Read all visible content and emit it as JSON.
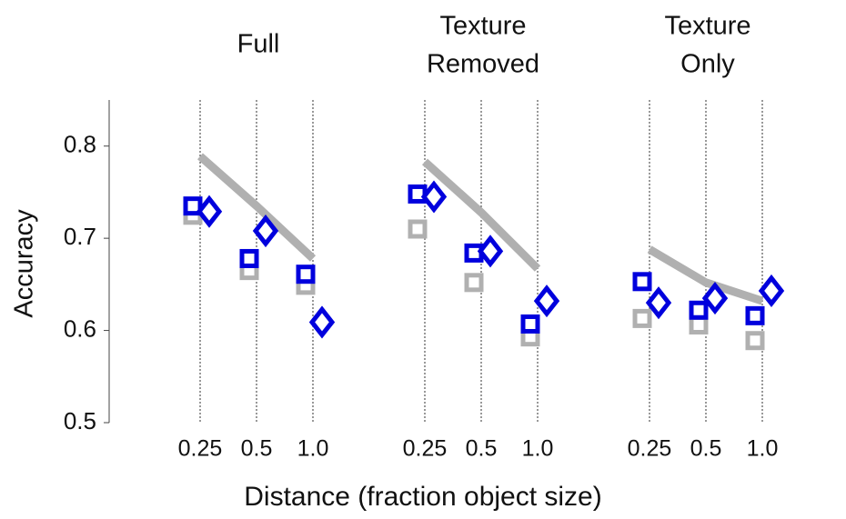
{
  "chart_data": {
    "type": "dot-panels",
    "ylabel": "Accuracy",
    "xlabel": "Distance (fraction object size)",
    "ylim": [
      0.5,
      0.85
    ],
    "yticks": [
      0.5,
      0.6,
      0.7,
      0.8
    ],
    "panels": [
      {
        "title": [
          "Full"
        ],
        "categories": [
          "0.25",
          "0.5",
          "1.0"
        ],
        "series": [
          {
            "marker": "line",
            "color": "#b0b0b0",
            "values": [
              0.789,
              0.735,
              0.678
            ]
          },
          {
            "marker": "square",
            "color": "#b0b0b0",
            "values": [
              0.725,
              0.665,
              0.649
            ]
          },
          {
            "marker": "square",
            "color": "#0000dd",
            "values": [
              0.735,
              0.678,
              0.661
            ]
          },
          {
            "marker": "diamond",
            "color": "#0000dd",
            "values": [
              0.729,
              0.708,
              0.609
            ]
          }
        ]
      },
      {
        "title": [
          "Texture",
          "Removed"
        ],
        "categories": [
          "0.25",
          "0.5",
          "1.0"
        ],
        "series": [
          {
            "marker": "line",
            "color": "#b0b0b0",
            "values": [
              0.783,
              0.728,
              0.667
            ]
          },
          {
            "marker": "square",
            "color": "#b0b0b0",
            "values": [
              0.71,
              0.652,
              0.593
            ]
          },
          {
            "marker": "square",
            "color": "#0000dd",
            "values": [
              0.748,
              0.684,
              0.607
            ]
          },
          {
            "marker": "diamond",
            "color": "#0000dd",
            "values": [
              0.745,
              0.686,
              0.632
            ]
          }
        ]
      },
      {
        "title": [
          "Texture",
          "Only"
        ],
        "categories": [
          "0.25",
          "0.5",
          "1.0"
        ],
        "series": [
          {
            "marker": "line",
            "color": "#b0b0b0",
            "values": [
              0.688,
              0.652,
              0.632
            ]
          },
          {
            "marker": "square",
            "color": "#b0b0b0",
            "values": [
              0.613,
              0.606,
              0.589
            ]
          },
          {
            "marker": "square",
            "color": "#0000dd",
            "values": [
              0.653,
              0.622,
              0.616
            ]
          },
          {
            "marker": "diamond",
            "color": "#0000dd",
            "values": [
              0.63,
              0.635,
              0.643
            ]
          }
        ]
      }
    ]
  }
}
